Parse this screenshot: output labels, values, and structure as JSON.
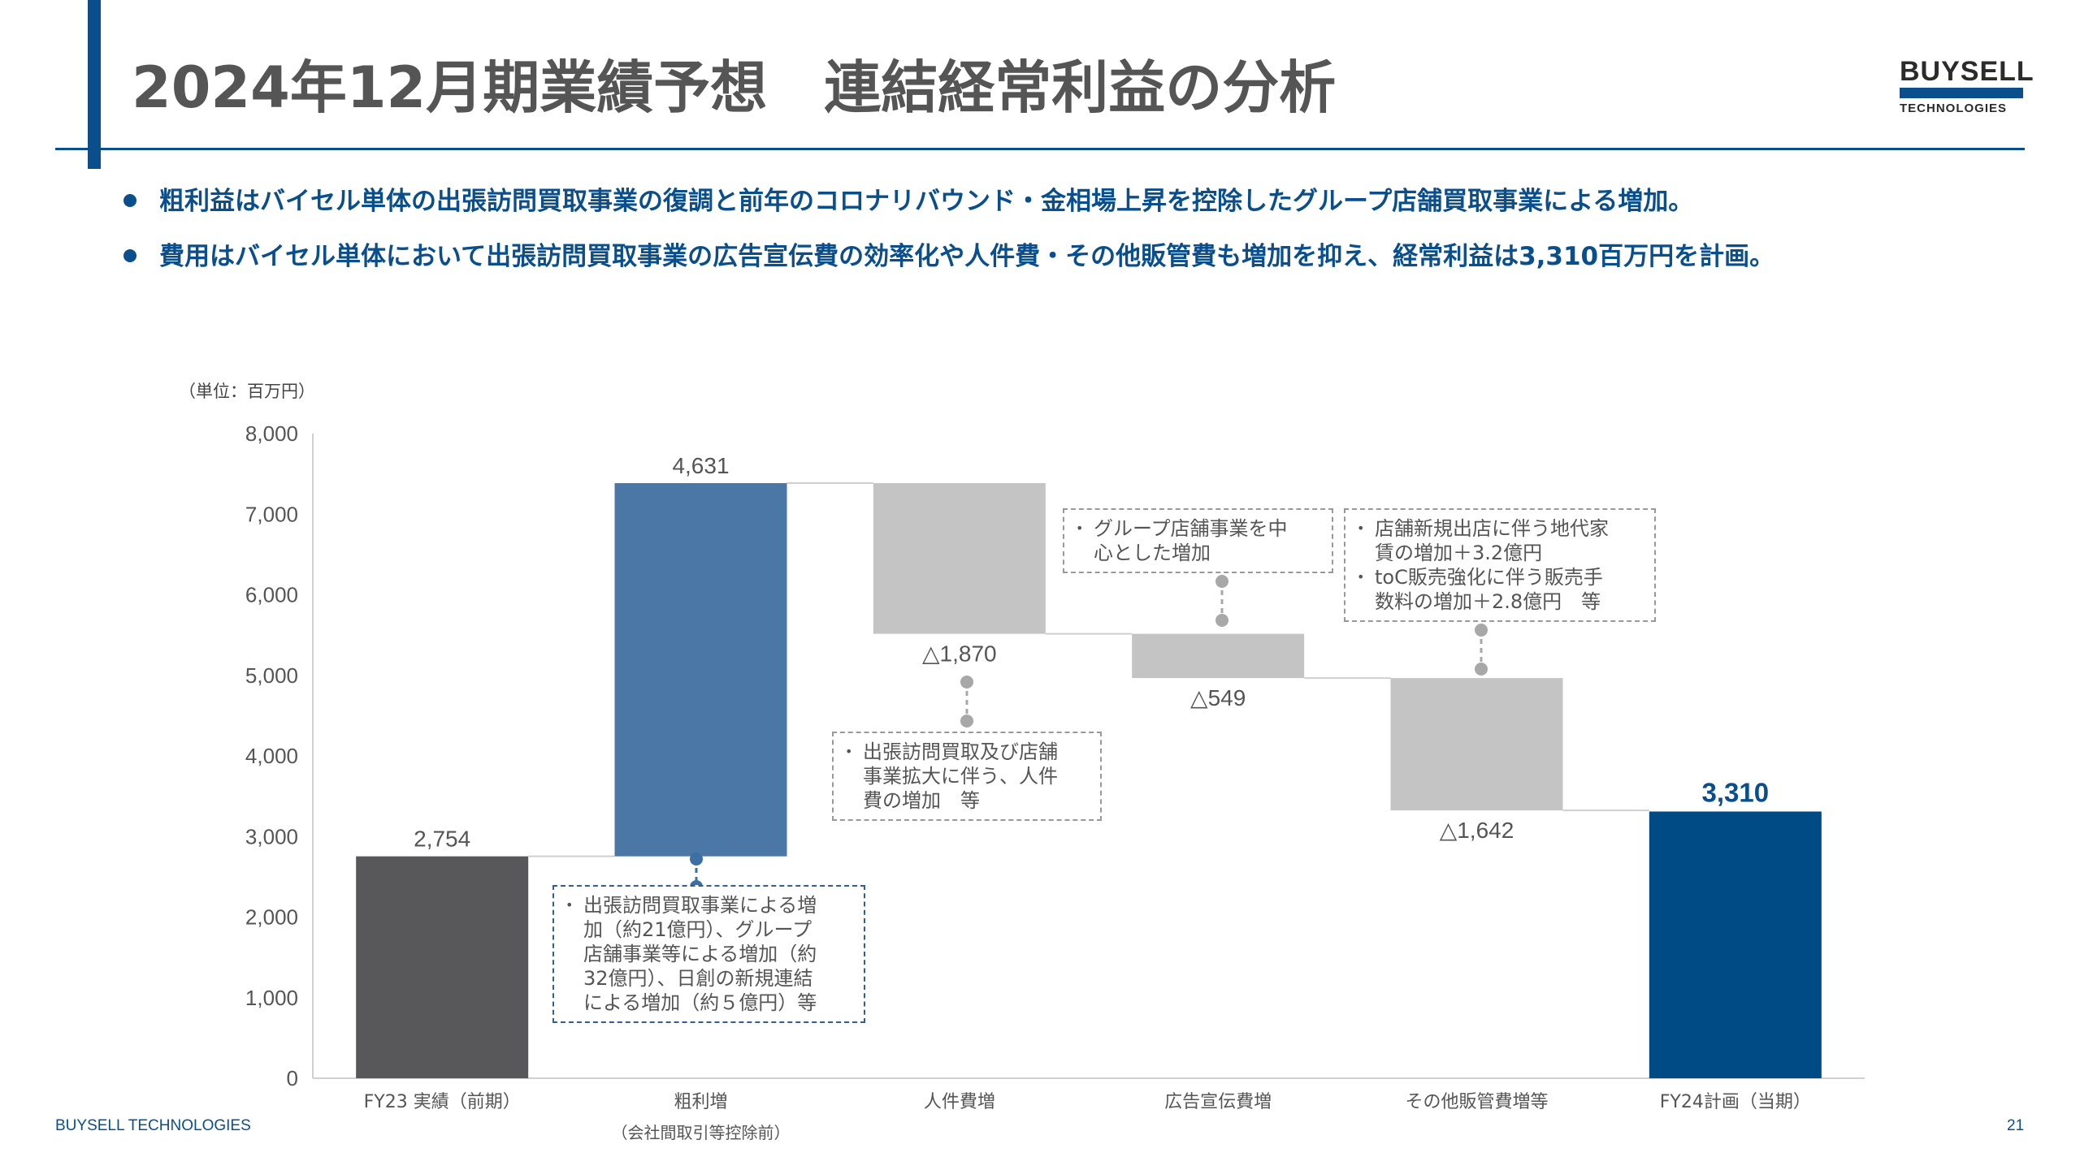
{
  "header": {
    "title": "2024年12月期業績予想　連結経常利益の分析",
    "logo_top": "BUYSELL",
    "logo_bottom": "TECHNOLOGIES"
  },
  "bullets": [
    "粗利益はバイセル単体の出張訪問買取事業の復調と前年のコロナリバウンド・金相場上昇を控除したグループ店舗買取事業による増加。",
    "費用はバイセル単体において出張訪問買取事業の広告宣伝費の効率化や人件費・その他販管費も増加を抑え、経常利益は3,310百万円を計画。"
  ],
  "unit_label": "（単位：百万円）",
  "chart_data": {
    "type": "waterfall",
    "unit": "百万円",
    "ylim": [
      0,
      8000
    ],
    "yticks": [
      0,
      1000,
      2000,
      3000,
      4000,
      5000,
      6000,
      7000,
      8000
    ],
    "ytick_labels": [
      "0",
      "1,000",
      "2,000",
      "3,000",
      "4,000",
      "5,000",
      "6,000",
      "7,000",
      "8,000"
    ],
    "categories": [
      "FY23 実績（前期）",
      "粗利増",
      "人件費増",
      "広告宣伝費増",
      "その他販管費増等",
      "FY24計画（当期）"
    ],
    "category_sublabels": [
      "",
      "（会社間取引等控除前）",
      "",
      "",
      "",
      ""
    ],
    "steps": [
      {
        "kind": "total",
        "value": 2754,
        "label": "2,754",
        "color": "#58585a"
      },
      {
        "kind": "increase",
        "value": 4631,
        "label": "4,631",
        "color": "#4a77a6"
      },
      {
        "kind": "decrease",
        "value": -1870,
        "label": "△1,870",
        "color": "#c4c4c4"
      },
      {
        "kind": "decrease",
        "value": -549,
        "label": "△549",
        "color": "#c4c4c4"
      },
      {
        "kind": "decrease",
        "value": -1642,
        "label": "△1,642",
        "color": "#c4c4c4"
      },
      {
        "kind": "total",
        "value": 3310,
        "label": "3,310",
        "color": "#004a85"
      }
    ]
  },
  "notes": {
    "gross_profit": [
      "出張訪問買取事業による増",
      "加（約21億円）、グループ",
      "店舗事業等による増加（約",
      "32億円）、日創の新規連結",
      "による増加（約５億円）等"
    ],
    "personnel": [
      "出張訪問買取及び店舗",
      "事業拡大に伴う、人件",
      "費の増加　等"
    ],
    "advertising": [
      "グループ店舗事業を中",
      "心とした増加"
    ],
    "other_sga_1": [
      "店舗新規出店に伴う地代家",
      "賃の増加＋3.2億円"
    ],
    "other_sga_2": [
      "toC販売強化に伴う販売手",
      "数料の増加＋2.8億円　等"
    ],
    "bullet_mark": "•"
  },
  "footer": {
    "company": "BUYSELL  TECHNOLOGIES",
    "page": "21"
  }
}
